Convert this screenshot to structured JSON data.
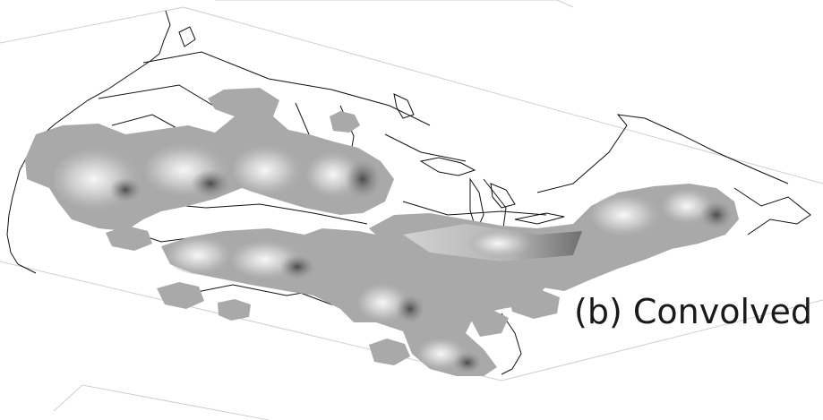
{
  "panel": {
    "label": "(b) Convolved"
  },
  "colors": {
    "background": "#ffffff",
    "plane_outline": "#cfcfcf",
    "borders": "#111111",
    "surface_base": "#a9a9a9",
    "surface_light": "#f4f4f4",
    "surface_shadow": "#4d4d4d"
  }
}
